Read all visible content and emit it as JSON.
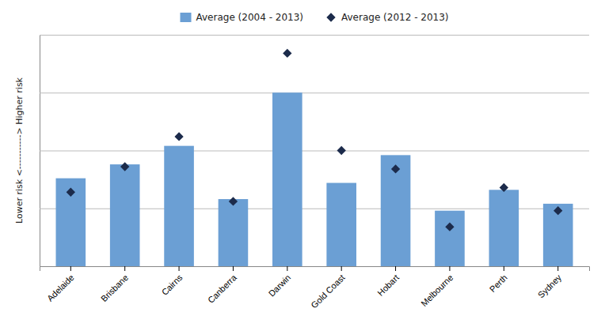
{
  "chart_data": {
    "type": "bar",
    "ylabel": "Lower risk <-----------> Higher risk",
    "categories": [
      "Adelaide",
      "Brisbane",
      "Cairns",
      "Canberra",
      "Darwin",
      "Gold Coast",
      "Hobart",
      "Melbourne",
      "Perth",
      "Sydney"
    ],
    "series": [
      {
        "name": "Average (2004 - 2013)",
        "type": "bar",
        "color": "#6B9FD4",
        "values": [
          0.38,
          0.44,
          0.52,
          0.29,
          0.75,
          0.36,
          0.48,
          0.24,
          0.33,
          0.27
        ]
      },
      {
        "name": "Average (2012 - 2013)",
        "type": "scatter",
        "marker": "diamond",
        "color": "#1C2B4B",
        "values": [
          0.32,
          0.43,
          0.56,
          0.28,
          0.92,
          0.5,
          0.42,
          0.17,
          0.34,
          0.24
        ]
      }
    ],
    "ylim": [
      0,
      1.0
    ],
    "yticks": [
      0.0,
      0.25,
      0.5,
      0.75,
      1.0
    ],
    "grid": true,
    "tick_labels": "x",
    "legend": "top"
  }
}
